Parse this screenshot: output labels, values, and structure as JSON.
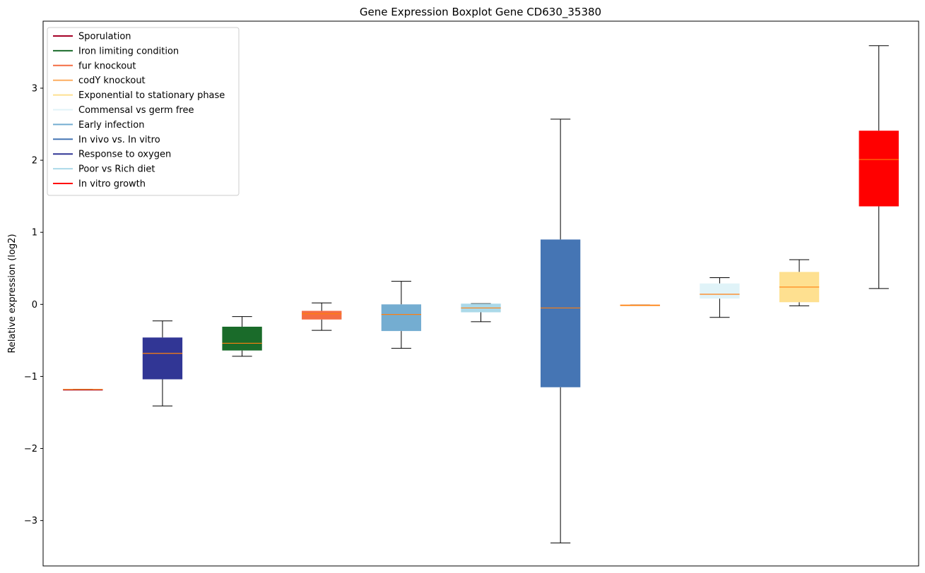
{
  "chart_data": {
    "type": "box",
    "title": "Gene Expression Boxplot Gene CD630_35380",
    "xlabel": "",
    "ylabel": "Relative expression (log2)",
    "ylim": [
      -3.63,
      3.93
    ],
    "yticks": [
      -3,
      -2,
      -1,
      0,
      1,
      2,
      3
    ],
    "ytick_labels": [
      "−3",
      "−2",
      "−1",
      "0",
      "1",
      "2",
      "3"
    ],
    "grid": false,
    "legend_position": "top-left",
    "legend": [
      {
        "label": "Sporulation",
        "color": "#a50026"
      },
      {
        "label": "Iron limiting condition",
        "color": "#1a6b2a"
      },
      {
        "label": "fur knockout",
        "color": "#f46d43"
      },
      {
        "label": "codY knockout",
        "color": "#fdae61"
      },
      {
        "label": "Exponential to stationary phase",
        "color": "#fee090"
      },
      {
        "label": "Commensal vs germ free",
        "color": "#e0f3f8"
      },
      {
        "label": "Early infection",
        "color": "#74add1"
      },
      {
        "label": "In vivo vs. In vitro",
        "color": "#4575b4"
      },
      {
        "label": "Response to oxygen",
        "color": "#313695"
      },
      {
        "label": "Poor vs Rich diet",
        "color": "#abd9e9"
      },
      {
        "label": "In vitro growth",
        "color": "#ff0000"
      }
    ],
    "median_color": "#ff7f0e",
    "boxes": [
      {
        "series": "Sporulation",
        "color": "#a50026",
        "whisker_low": -1.18,
        "q1": -1.18,
        "median": -1.18,
        "q3": -1.18,
        "whisker_high": -1.18
      },
      {
        "series": "Response to oxygen",
        "color": "#313695",
        "whisker_low": -1.41,
        "q1": -1.04,
        "median": -0.68,
        "q3": -0.46,
        "whisker_high": -0.23
      },
      {
        "series": "Iron limiting condition",
        "color": "#1a6b2a",
        "whisker_low": -0.72,
        "q1": -0.64,
        "median": -0.54,
        "q3": -0.31,
        "whisker_high": -0.17
      },
      {
        "series": "fur knockout",
        "color": "#f46d43",
        "whisker_low": -0.36,
        "q1": -0.21,
        "median": -0.13,
        "q3": -0.09,
        "whisker_high": 0.02
      },
      {
        "series": "Early infection",
        "color": "#74add1",
        "whisker_low": -0.61,
        "q1": -0.37,
        "median": -0.14,
        "q3": 0.0,
        "whisker_high": 0.32
      },
      {
        "series": "Poor vs Rich diet",
        "color": "#abd9e9",
        "whisker_low": -0.24,
        "q1": -0.11,
        "median": -0.05,
        "q3": 0.01,
        "whisker_high": 0.01
      },
      {
        "series": "In vivo vs. In vitro",
        "color": "#4575b4",
        "whisker_low": -3.31,
        "q1": -1.15,
        "median": -0.05,
        "q3": 0.9,
        "whisker_high": 2.57
      },
      {
        "series": "codY knockout",
        "color": "#fdae61",
        "whisker_low": -0.01,
        "q1": -0.01,
        "median": -0.01,
        "q3": -0.01,
        "whisker_high": -0.01
      },
      {
        "series": "Commensal vs germ free",
        "color": "#e0f3f8",
        "whisker_low": -0.18,
        "q1": 0.08,
        "median": 0.14,
        "q3": 0.29,
        "whisker_high": 0.37
      },
      {
        "series": "Exponential to stationary phase",
        "color": "#fee090",
        "whisker_low": -0.02,
        "q1": 0.03,
        "median": 0.24,
        "q3": 0.45,
        "whisker_high": 0.62
      },
      {
        "series": "In vitro growth",
        "color": "#ff0000",
        "whisker_low": 0.22,
        "q1": 1.36,
        "median": 2.01,
        "q3": 2.41,
        "whisker_high": 3.59
      }
    ]
  }
}
